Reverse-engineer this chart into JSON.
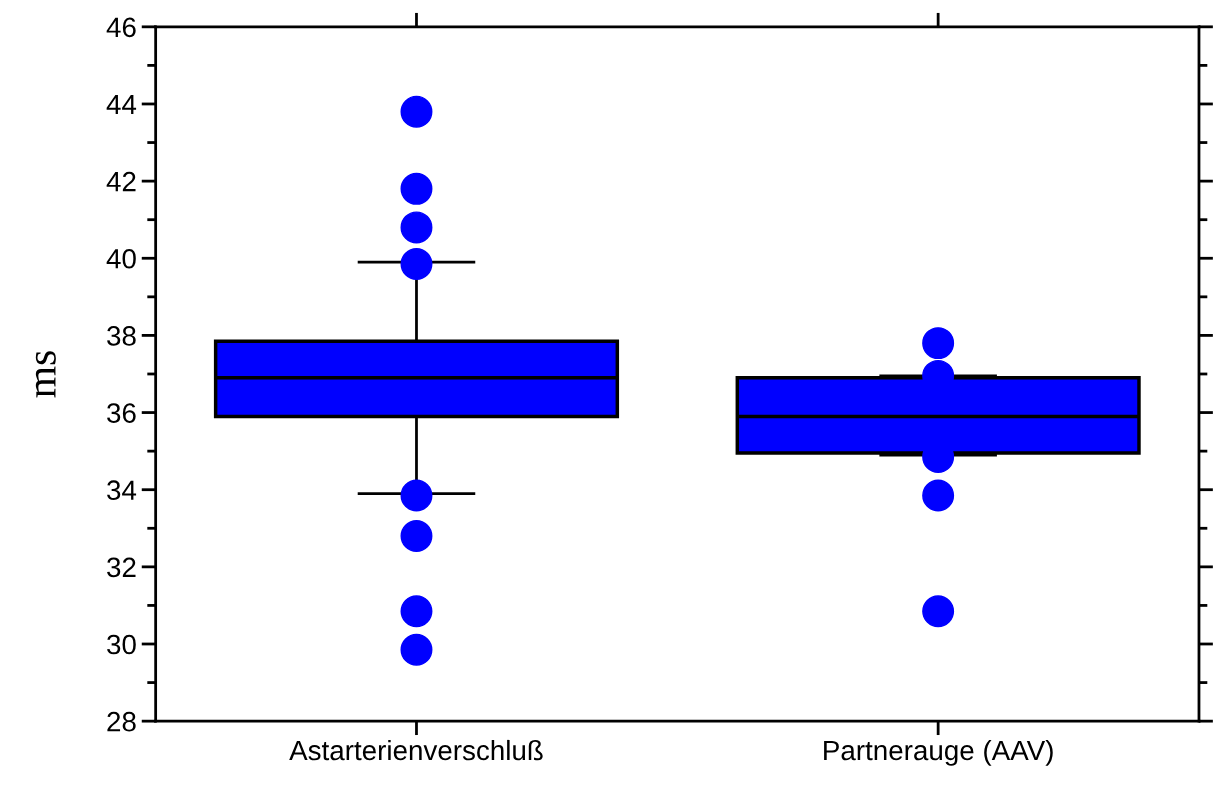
{
  "chart_data": {
    "type": "box",
    "ylabel": "ms",
    "categories": [
      "Astarterienverschluß",
      "Partnerauge (AAV)"
    ],
    "ylim": [
      28,
      46
    ],
    "yticks": [
      28,
      30,
      32,
      34,
      36,
      38,
      40,
      42,
      44,
      46
    ],
    "grid": false,
    "marker": "circle",
    "series": [
      {
        "color": "#0000ff",
        "boxes": [
          {
            "low": 33.9,
            "q1": 35.9,
            "median": 36.9,
            "q3": 37.85,
            "high": 39.9,
            "outliers": [
              43.8,
              41.8,
              40.8,
              39.85,
              33.85,
              32.8,
              30.85,
              29.85
            ]
          },
          {
            "low": 34.9,
            "q1": 34.95,
            "median": 35.9,
            "q3": 36.9,
            "high": 36.95,
            "outliers": [
              37.8,
              36.95,
              34.85,
              33.85,
              30.85
            ]
          }
        ]
      }
    ]
  }
}
